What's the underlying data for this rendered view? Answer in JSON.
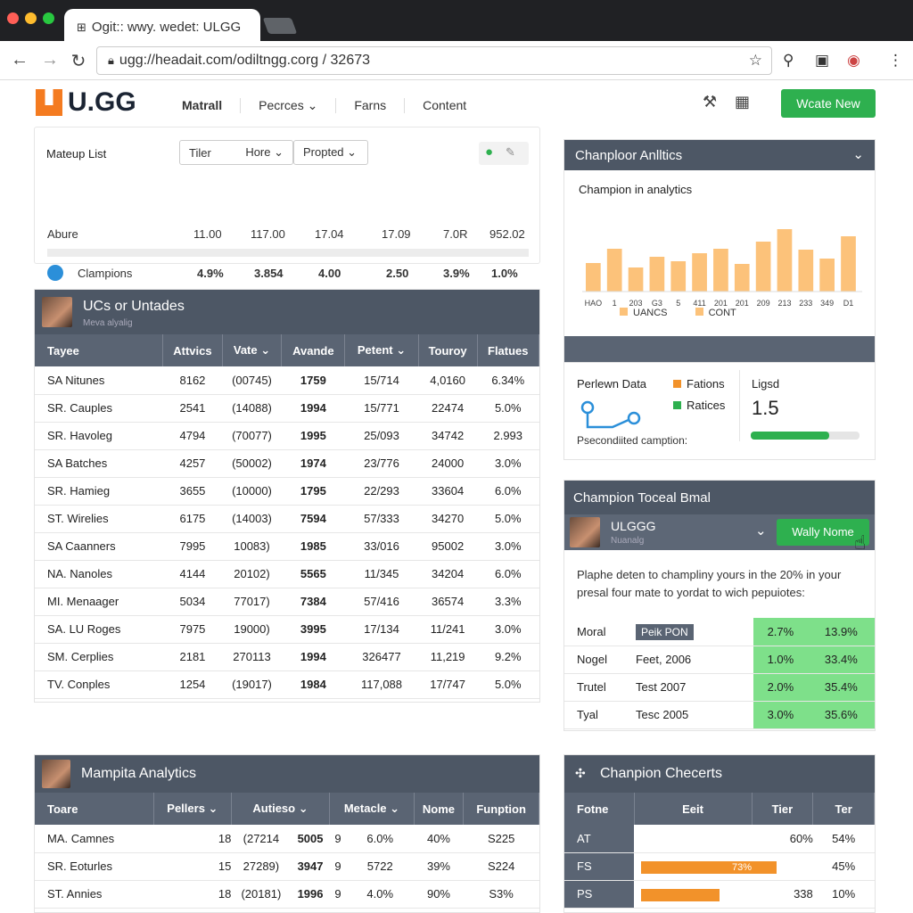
{
  "browser": {
    "tab_title": "Ogit:: wwy. wedet: ULGG",
    "url": "ugg://headait.com/odiltngg.corg / 32673"
  },
  "header": {
    "logo_text": "U.GG",
    "nav": [
      "Matrall",
      "Pecrces ⌄",
      "Farns",
      "Content"
    ],
    "cta_label": "Wcate New"
  },
  "matchup": {
    "title": "Mateup List",
    "filters": [
      "Tiler",
      "Hore ⌄",
      "Propted ⌄"
    ],
    "row1_label": "Abure",
    "row1_values": [
      "11.00",
      "117.00",
      "17.04",
      "17.09",
      "7.0R",
      "952.02"
    ],
    "row2_label": "Clampions",
    "row2_values": [
      "4.9%",
      "3.854",
      "4.00",
      "2.50",
      "3.9%",
      "1.0%"
    ]
  },
  "updates": {
    "title": "UCs or Untades",
    "subtitle": "Meva alyalig",
    "columns": [
      "Tayee",
      "Attvics",
      "Vate ⌄",
      "Avande",
      "Petent ⌄",
      "Touroy",
      "Flatues"
    ],
    "rows": [
      [
        "SA Nitunes",
        "8162",
        "(00745)",
        "1759",
        "15/714",
        "4,0160",
        "6.34%"
      ],
      [
        "SR. Cauples",
        "2541",
        "(14088)",
        "1994",
        "15/771",
        "22474",
        "5.0%"
      ],
      [
        "SR. Havoleg",
        "4794",
        "(70077)",
        "1995",
        "25/093",
        "34742",
        "2.993"
      ],
      [
        "SA Batches",
        "4257",
        "(50002)",
        "1974",
        "23/776",
        "24000",
        "3.0%"
      ],
      [
        "SR. Hamieg",
        "3655",
        "(10000)",
        "1795",
        "22/293",
        "33604",
        "6.0%"
      ],
      [
        "ST. Wirelies",
        "6175",
        "(14003)",
        "7594",
        "57/333",
        "34270",
        "5.0%"
      ],
      [
        "SA Caanners",
        "7995",
        "10083)",
        "1985",
        "33/016",
        "95002",
        "3.0%"
      ],
      [
        "NA. Nanoles",
        "4144",
        "20102)",
        "5565",
        "11/345",
        "34204",
        "6.0%"
      ],
      [
        "MI. Menaager",
        "5034",
        "77017)",
        "7384",
        "57/416",
        "36574",
        "3.3%"
      ],
      [
        "SA. LU Roges",
        "7975",
        "19000)",
        "3995",
        "17/134",
        "11/241",
        "3.0%"
      ],
      [
        "SM. Cerplies",
        "2181",
        "270113",
        "1994",
        "326477",
        "11,219",
        "9.2%"
      ],
      [
        "TV. Conples",
        "1254",
        "(19017)",
        "1984",
        "117,088",
        "17/747",
        "5.0%"
      ]
    ]
  },
  "analytics": {
    "title": "Chanploor Anlltics",
    "subtitle": "Champion in analytics",
    "x_labels": [
      "HAO",
      "1",
      "203",
      "G3",
      "5",
      "411",
      "201",
      "201",
      "209",
      "213",
      "233",
      "349",
      "D1"
    ],
    "legend": [
      "UANCS",
      "CONT"
    ],
    "bar_color": "#fcc27a"
  },
  "chart_data": {
    "type": "bar",
    "categories": [
      "HAO",
      "1",
      "203",
      "G3",
      "5",
      "411",
      "201",
      "201",
      "209",
      "213",
      "233",
      "349",
      "D1"
    ],
    "values": [
      32,
      48,
      27,
      39,
      34,
      43,
      48,
      31,
      56,
      70,
      47,
      37,
      62
    ],
    "title": "Champion in analytics",
    "ylim": [
      0,
      80
    ]
  },
  "perlewn": {
    "title": "Perlewn Data",
    "legend": [
      {
        "label": "Fations",
        "color": "#f2922a"
      },
      {
        "label": "Ratices",
        "color": "#2eb04f"
      }
    ],
    "caption": "Psecondiited camption:",
    "ligd_label": "Ligsd",
    "ligd_value": "1.5",
    "progress": 0.72
  },
  "toceal": {
    "title": "Champion Toceal Bmal",
    "sub_name": "ULGGG",
    "sub_caption": "Nuanalg",
    "btn_label": "Wally Nome",
    "description": "Plaphe deten to champliny yours in the 20% in your presal four mate to yordat to wich pepuiotes:",
    "rows": [
      [
        "Moral",
        "Peik PON",
        "2.7%",
        "13.9%"
      ],
      [
        "Nogel",
        "Feet, 2006",
        "1.0%",
        "33.4%"
      ],
      [
        "Trutel",
        "Test 2007",
        "2.0%",
        "35.4%"
      ],
      [
        "Tyal",
        "Tesc 2005",
        "3.0%",
        "35.6%"
      ]
    ]
  },
  "mampita": {
    "title": "Mampita Analytics",
    "columns": [
      "Toare",
      "Pellers ⌄",
      "Autieso ⌄",
      "Metacle ⌄",
      "Nome",
      "Funption"
    ],
    "rows": [
      [
        "MA. Camnes",
        "18",
        "(27214",
        "5005",
        "9",
        "6.0%",
        "40%",
        "S225"
      ],
      [
        "SR. Eoturles",
        "15",
        "27289)",
        "3947",
        "9",
        "5722",
        "39%",
        "S224"
      ],
      [
        "ST. Annies",
        "18",
        "(20181)",
        "1996",
        "9",
        "4.0%",
        "90%",
        "S3%"
      ]
    ]
  },
  "checkerts": {
    "title": "Chanpion Checerts",
    "columns": [
      "Fotne",
      "Eeit",
      "Tier",
      "Ter"
    ],
    "rows": [
      [
        "AT",
        "",
        "60%",
        "54%"
      ],
      [
        "FS",
        "73%",
        "",
        "45%"
      ],
      [
        "PS",
        "",
        "338",
        "10%"
      ]
    ],
    "bar_fractions": [
      0,
      0.95,
      0.55
    ],
    "bar_color": "#f2922a"
  }
}
